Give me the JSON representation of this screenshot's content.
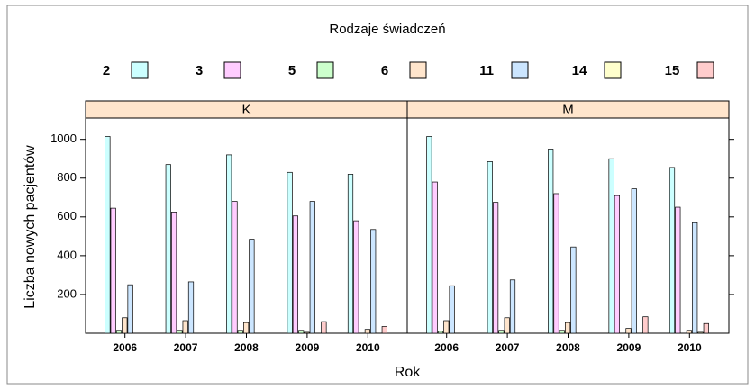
{
  "chart_data": {
    "type": "bar",
    "title": "Rodzaje świadczeń",
    "xlabel": "Rok",
    "ylabel": "Liczba nowych pacjentów",
    "categories": [
      "2006",
      "2007",
      "2008",
      "2009",
      "2010"
    ],
    "ylim": [
      0,
      1110
    ],
    "yticks": [
      200,
      400,
      600,
      800,
      1000
    ],
    "series": [
      {
        "name": "2",
        "color": "#CCFFFF"
      },
      {
        "name": "3",
        "color": "#FFCCFF"
      },
      {
        "name": "5",
        "color": "#CCFFCC"
      },
      {
        "name": "6",
        "color": "#FFE5CC"
      },
      {
        "name": "11",
        "color": "#CCE6FF"
      },
      {
        "name": "14",
        "color": "#FFFFCC"
      },
      {
        "name": "15",
        "color": "#FFCCCC"
      }
    ],
    "panels": [
      {
        "label": "K",
        "values": [
          [
            1015,
            870,
            920,
            830,
            820
          ],
          [
            645,
            625,
            680,
            605,
            580
          ],
          [
            15,
            15,
            15,
            15,
            0
          ],
          [
            80,
            65,
            55,
            5,
            20
          ],
          [
            250,
            265,
            485,
            680,
            535
          ],
          [
            0,
            0,
            0,
            0,
            0
          ],
          [
            0,
            0,
            0,
            60,
            35
          ]
        ]
      },
      {
        "label": "M",
        "values": [
          [
            1015,
            885,
            950,
            900,
            855
          ],
          [
            780,
            675,
            720,
            710,
            650
          ],
          [
            10,
            15,
            15,
            0,
            0
          ],
          [
            65,
            80,
            55,
            25,
            15
          ],
          [
            245,
            275,
            445,
            745,
            570
          ],
          [
            0,
            0,
            0,
            0,
            5
          ],
          [
            0,
            0,
            0,
            85,
            50
          ]
        ]
      }
    ]
  }
}
